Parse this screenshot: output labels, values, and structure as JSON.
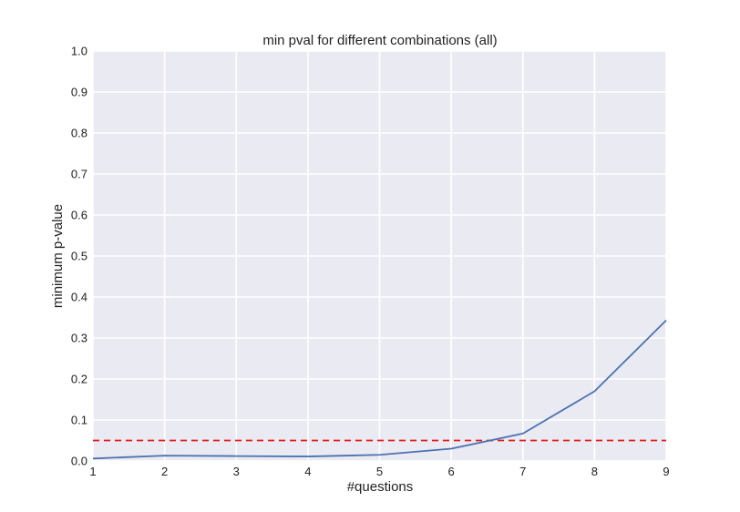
{
  "chart_data": {
    "type": "line",
    "title": "min pval for different combinations (all)",
    "xlabel": "#questions",
    "ylabel": "minimum p-value",
    "xlim": [
      1,
      9
    ],
    "ylim": [
      0.0,
      1.0
    ],
    "x_ticks": [
      "1",
      "2",
      "3",
      "4",
      "5",
      "6",
      "7",
      "8",
      "9"
    ],
    "y_ticks": [
      "0.0",
      "0.1",
      "0.2",
      "0.3",
      "0.4",
      "0.5",
      "0.6",
      "0.7",
      "0.8",
      "0.9",
      "1.0"
    ],
    "grid": true,
    "series": [
      {
        "x": [
          1,
          2,
          3,
          4,
          5,
          6,
          7,
          8,
          9
        ],
        "values": [
          0.006,
          0.013,
          0.012,
          0.011,
          0.015,
          0.03,
          0.067,
          0.17,
          0.343
        ],
        "color": "#4c72b0",
        "style": "solid"
      }
    ],
    "reference_lines": [
      {
        "y": 0.05,
        "color": "#e41a1c",
        "style": "dashed"
      }
    ]
  },
  "colors": {
    "plot_background": "#eaeaf2",
    "grid": "#ffffff",
    "line": "#4c72b0",
    "threshold": "#e41a1c"
  }
}
